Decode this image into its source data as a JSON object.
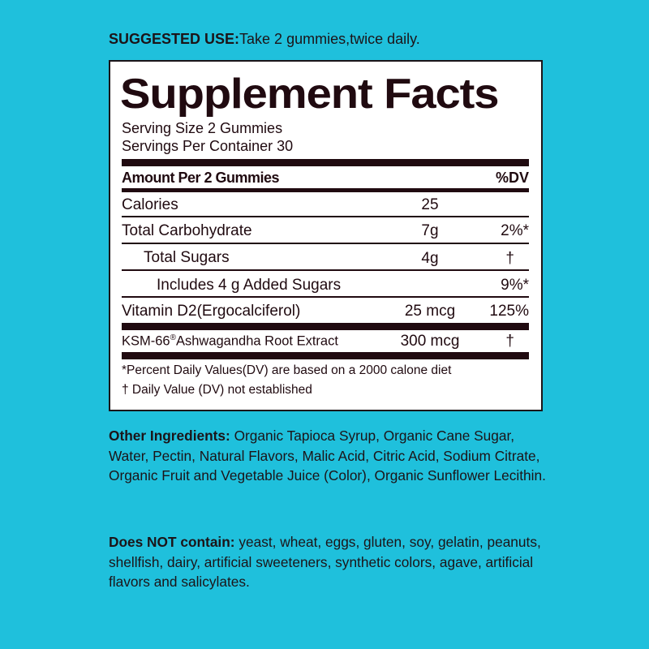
{
  "suggested_use": {
    "label": "SUGGESTED USE:",
    "text": "Take 2 gummies,twice daily."
  },
  "facts": {
    "title": "Supplement Facts",
    "serving_size": "Serving Size 2 Gummies",
    "servings_per_container": "Servings Per Container 30",
    "header_amount": "Amount Per 2 Gummies",
    "header_dv": "%DV",
    "rows": [
      {
        "name": "Calories",
        "amount": "25",
        "dv": ""
      },
      {
        "name": "Total Carbohydrate",
        "amount": "7g",
        "dv": "2%*"
      },
      {
        "name": "Total Sugars",
        "amount": "4g",
        "dv": "†"
      },
      {
        "name": "Includes 4 g Added Sugars",
        "amount": "",
        "dv": "9%*"
      },
      {
        "name": "Vitamin D2(Ergocalciferol)",
        "amount": "25 mcg",
        "dv": "125%"
      },
      {
        "name": "KSM-66",
        "sup": "®",
        "name_rest": "Ashwagandha Root Extract",
        "amount": "300 mcg",
        "dv": "†"
      }
    ],
    "footnote1": "*Percent Daily Values(DV) are based on a 2000 calone diet",
    "footnote2": "† Daily Value (DV) not established"
  },
  "other_ingredients": {
    "label": "Other Ingredients:",
    "text": " Organic Tapioca Syrup, Organic Cane Sugar, Water, Pectin, Natural Flavors, Malic Acid, Citric Acid, Sodium Citrate, Organic Fruit and Vegetable Juice (Color), Organic Sunflower Lecithin."
  },
  "does_not_contain": {
    "label": "Does NOT contain:",
    "text": " yeast, wheat, eggs, gluten, soy, gelatin, peanuts, shellfish, dairy, artificial sweeteners, synthetic colors, agave, artificial flavors and salicylates."
  }
}
